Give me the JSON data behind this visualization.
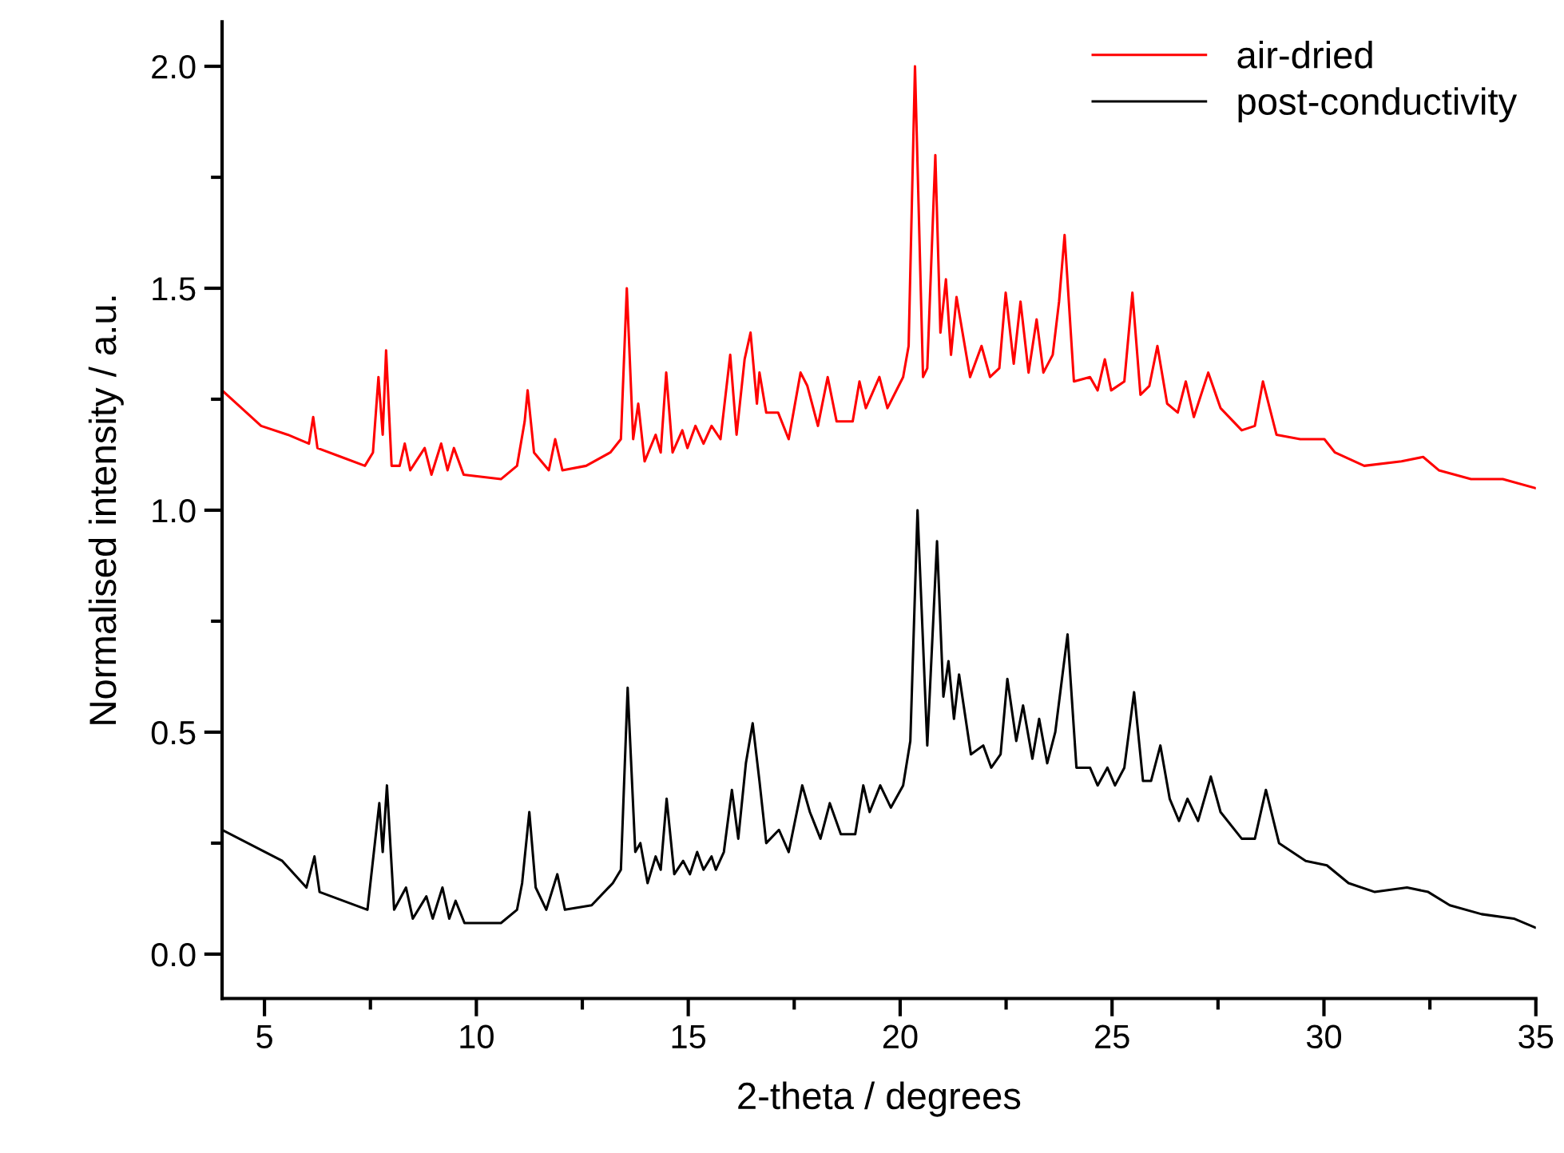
{
  "chart_data": {
    "type": "line",
    "xlabel": "2-theta / degrees",
    "ylabel": "Normalised intensity / a.u.",
    "xlim": [
      4,
      35
    ],
    "ylim": [
      -0.1,
      2.1
    ],
    "xticks": [
      5,
      {
        "value": 7.5,
        "label": null
      },
      10,
      {
        "value": 12.5,
        "label": null
      },
      15,
      {
        "value": 17.5,
        "label": null
      },
      20,
      {
        "value": 22.5,
        "label": null
      },
      25,
      {
        "value": 27.5,
        "label": null
      },
      30,
      {
        "value": 32.5,
        "label": null
      },
      35
    ],
    "yticks": [
      {
        "value": 0,
        "label": "0.0"
      },
      {
        "value": 0.25,
        "label": null
      },
      {
        "value": 0.5,
        "label": "0.5"
      },
      {
        "value": 0.75,
        "label": null
      },
      {
        "value": 1,
        "label": "1.0"
      },
      {
        "value": 1.25,
        "label": null
      },
      {
        "value": 1.5,
        "label": "1.5"
      },
      {
        "value": 1.75,
        "label": null
      },
      {
        "value": 2,
        "label": "2.0"
      }
    ],
    "grid": false,
    "legend": "top right",
    "marker": "none",
    "line_style": "solid",
    "series": [
      {
        "name": "air-dried",
        "color": "#ff0000",
        "x": [
          4.0,
          4.92,
          5.55,
          6.05,
          6.15,
          6.25,
          6.81,
          7.37,
          7.56,
          7.69,
          7.79,
          7.87,
          8.0,
          8.19,
          8.31,
          8.44,
          8.78,
          8.94,
          9.17,
          9.32,
          9.47,
          9.7,
          10.58,
          10.96,
          11.14,
          11.21,
          11.36,
          11.71,
          11.86,
          12.03,
          12.59,
          13.16,
          13.41,
          13.55,
          13.7,
          13.82,
          13.97,
          14.23,
          14.35,
          14.48,
          14.63,
          14.86,
          14.98,
          15.17,
          15.36,
          15.55,
          15.76,
          15.99,
          16.14,
          16.33,
          16.47,
          16.62,
          16.68,
          16.84,
          17.12,
          17.37,
          17.65,
          17.81,
          18.06,
          18.29,
          18.5,
          18.88,
          19.04,
          19.19,
          19.51,
          19.7,
          20.07,
          20.2,
          20.35,
          20.54,
          20.64,
          20.83,
          20.95,
          21.08,
          21.2,
          21.33,
          21.65,
          21.92,
          22.12,
          22.34,
          22.49,
          22.68,
          22.84,
          23.03,
          23.22,
          23.38,
          23.6,
          23.75,
          23.88,
          24.1,
          24.48,
          24.66,
          24.83,
          24.98,
          25.29,
          25.48,
          25.67,
          25.88,
          26.07,
          26.3,
          26.55,
          26.74,
          26.93,
          27.27,
          27.56,
          28.06,
          28.37,
          28.56,
          28.88,
          29.44,
          30.01,
          30.26,
          30.95,
          31.83,
          32.34,
          32.71,
          33.47,
          34.22,
          34.98
        ],
        "values": [
          1.27,
          1.19,
          1.17,
          1.15,
          1.21,
          1.14,
          1.12,
          1.1,
          1.13,
          1.3,
          1.17,
          1.36,
          1.1,
          1.1,
          1.15,
          1.09,
          1.14,
          1.08,
          1.15,
          1.09,
          1.14,
          1.08,
          1.07,
          1.1,
          1.2,
          1.27,
          1.13,
          1.09,
          1.16,
          1.09,
          1.1,
          1.13,
          1.16,
          1.5,
          1.16,
          1.24,
          1.11,
          1.17,
          1.13,
          1.31,
          1.13,
          1.18,
          1.14,
          1.19,
          1.15,
          1.19,
          1.16,
          1.35,
          1.17,
          1.34,
          1.4,
          1.24,
          1.31,
          1.22,
          1.22,
          1.16,
          1.31,
          1.28,
          1.19,
          1.3,
          1.2,
          1.2,
          1.29,
          1.23,
          1.3,
          1.23,
          1.3,
          1.37,
          2.0,
          1.3,
          1.32,
          1.8,
          1.4,
          1.52,
          1.35,
          1.48,
          1.3,
          1.37,
          1.3,
          1.32,
          1.49,
          1.33,
          1.47,
          1.31,
          1.43,
          1.31,
          1.35,
          1.47,
          1.62,
          1.29,
          1.3,
          1.27,
          1.34,
          1.27,
          1.29,
          1.49,
          1.26,
          1.28,
          1.37,
          1.24,
          1.22,
          1.29,
          1.21,
          1.31,
          1.23,
          1.18,
          1.19,
          1.29,
          1.17,
          1.16,
          1.16,
          1.13,
          1.1,
          1.11,
          1.12,
          1.09,
          1.07,
          1.07,
          1.05
        ]
      },
      {
        "name": "post-conductivity",
        "color": "#000000",
        "x": [
          4.0,
          5.42,
          5.99,
          6.18,
          6.3,
          7.43,
          7.71,
          7.79,
          7.89,
          8.06,
          8.34,
          8.5,
          8.82,
          8.97,
          9.2,
          9.36,
          9.51,
          9.72,
          10.58,
          10.96,
          11.08,
          11.25,
          11.4,
          11.65,
          11.91,
          12.09,
          12.72,
          13.22,
          13.41,
          13.57,
          13.75,
          13.87,
          14.04,
          14.23,
          14.35,
          14.49,
          14.67,
          14.88,
          15.04,
          15.21,
          15.36,
          15.55,
          15.65,
          15.84,
          16.03,
          16.18,
          16.36,
          16.52,
          16.68,
          16.84,
          17.14,
          17.37,
          17.69,
          17.87,
          18.12,
          18.34,
          18.6,
          18.94,
          19.13,
          19.28,
          19.53,
          19.78,
          20.07,
          20.24,
          20.41,
          20.64,
          20.87,
          21.02,
          21.14,
          21.27,
          21.39,
          21.67,
          21.96,
          22.15,
          22.37,
          22.53,
          22.74,
          22.9,
          23.12,
          23.28,
          23.47,
          23.66,
          23.95,
          24.16,
          24.48,
          24.66,
          24.89,
          25.07,
          25.29,
          25.52,
          25.73,
          25.92,
          26.14,
          26.36,
          26.58,
          26.78,
          27.03,
          27.33,
          27.56,
          28.06,
          28.37,
          28.63,
          28.94,
          29.57,
          30.07,
          30.58,
          31.2,
          31.96,
          32.46,
          32.97,
          33.72,
          34.48,
          34.98
        ],
        "values": [
          0.28,
          0.21,
          0.15,
          0.22,
          0.14,
          0.1,
          0.34,
          0.23,
          0.38,
          0.1,
          0.15,
          0.08,
          0.13,
          0.08,
          0.15,
          0.08,
          0.12,
          0.07,
          0.07,
          0.1,
          0.16,
          0.32,
          0.15,
          0.1,
          0.18,
          0.1,
          0.11,
          0.16,
          0.19,
          0.6,
          0.23,
          0.25,
          0.16,
          0.22,
          0.19,
          0.35,
          0.18,
          0.21,
          0.18,
          0.23,
          0.19,
          0.22,
          0.19,
          0.23,
          0.37,
          0.26,
          0.43,
          0.52,
          0.39,
          0.25,
          0.28,
          0.23,
          0.38,
          0.32,
          0.26,
          0.34,
          0.27,
          0.27,
          0.38,
          0.32,
          0.38,
          0.33,
          0.38,
          0.48,
          1.0,
          0.47,
          0.93,
          0.58,
          0.66,
          0.53,
          0.63,
          0.45,
          0.47,
          0.42,
          0.45,
          0.62,
          0.48,
          0.56,
          0.44,
          0.53,
          0.43,
          0.5,
          0.72,
          0.42,
          0.42,
          0.38,
          0.42,
          0.38,
          0.42,
          0.59,
          0.39,
          0.39,
          0.47,
          0.35,
          0.3,
          0.35,
          0.3,
          0.4,
          0.32,
          0.26,
          0.26,
          0.37,
          0.25,
          0.21,
          0.2,
          0.16,
          0.14,
          0.15,
          0.14,
          0.11,
          0.09,
          0.08,
          0.06
        ]
      }
    ]
  }
}
